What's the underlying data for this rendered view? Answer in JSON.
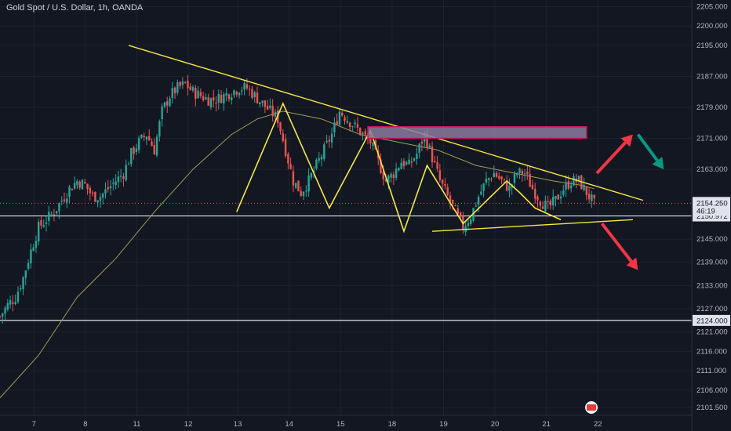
{
  "header": {
    "title": "Gold Spot / U.S. Dollar, 1h, OANDA"
  },
  "colors": {
    "background": "#131722",
    "up": "#26a69a",
    "down": "#ef5350",
    "trendline": "#f5e642",
    "ma": "#9e9d57",
    "zone_fill": "#8c7a9e",
    "zone_border": "#c2185b",
    "arrow_red": "#f23645",
    "arrow_green": "#089981"
  },
  "chart_data": {
    "type": "candlestick",
    "title": "Gold Spot / U.S. Dollar, 1h, OANDA",
    "x_ticks": [
      "7",
      "8",
      "11",
      "12",
      "13",
      "14",
      "15",
      "18",
      "19",
      "20",
      "21",
      "22"
    ],
    "y_ticks": [
      "2205.000",
      "2200.000",
      "2195.000",
      "2187.000",
      "2179.000",
      "2171.000",
      "2163.000",
      "2145.000",
      "2139.000",
      "2133.000",
      "2127.000",
      "2121.000",
      "2116.000",
      "2111.000",
      "2106.000",
      "2101.500"
    ],
    "ylim": [
      2099.5,
      2205.5
    ],
    "price_tag": {
      "price": "2154.250",
      "countdown": "46:19"
    },
    "horizontal_levels": [
      {
        "label": "2150.972",
        "value": 2150.972
      },
      {
        "label": "2124.000",
        "value": 2124.0
      }
    ],
    "close_path": [
      [
        0,
        2125
      ],
      [
        3,
        2128
      ],
      [
        6,
        2130
      ],
      [
        9,
        2135
      ],
      [
        12,
        2142
      ],
      [
        15,
        2148
      ],
      [
        18,
        2150
      ],
      [
        21,
        2152
      ],
      [
        24,
        2155
      ],
      [
        27,
        2158
      ],
      [
        30,
        2160
      ],
      [
        33,
        2159
      ],
      [
        36,
        2156
      ],
      [
        39,
        2156
      ],
      [
        42,
        2158
      ],
      [
        45,
        2160
      ],
      [
        48,
        2162
      ],
      [
        51,
        2167
      ],
      [
        54,
        2170
      ],
      [
        57,
        2172
      ],
      [
        60,
        2168
      ],
      [
        63,
        2178
      ],
      [
        66,
        2182
      ],
      [
        69,
        2184
      ],
      [
        72,
        2185
      ],
      [
        75,
        2183
      ],
      [
        78,
        2182
      ],
      [
        81,
        2181
      ],
      [
        84,
        2181
      ],
      [
        87,
        2182
      ],
      [
        90,
        2183
      ],
      [
        93,
        2184
      ],
      [
        96,
        2184
      ],
      [
        99,
        2182
      ],
      [
        102,
        2180
      ],
      [
        105,
        2178
      ],
      [
        108,
        2176
      ],
      [
        111,
        2168
      ],
      [
        114,
        2160
      ],
      [
        117,
        2157
      ],
      [
        120,
        2160
      ],
      [
        123,
        2164
      ],
      [
        126,
        2168
      ],
      [
        129,
        2172
      ],
      [
        132,
        2178
      ],
      [
        135,
        2176
      ],
      [
        138,
        2174
      ],
      [
        141,
        2172
      ],
      [
        144,
        2170
      ],
      [
        147,
        2165
      ],
      [
        150,
        2160
      ],
      [
        153,
        2162
      ],
      [
        156,
        2165
      ],
      [
        159,
        2164
      ],
      [
        162,
        2167
      ],
      [
        165,
        2172
      ],
      [
        168,
        2166
      ],
      [
        171,
        2160
      ],
      [
        174,
        2156
      ],
      [
        177,
        2152
      ],
      [
        180,
        2148
      ],
      [
        183,
        2151
      ],
      [
        186,
        2156
      ],
      [
        189,
        2160
      ],
      [
        192,
        2162
      ],
      [
        195,
        2160
      ],
      [
        198,
        2158
      ],
      [
        201,
        2162
      ],
      [
        204,
        2162
      ],
      [
        207,
        2158
      ],
      [
        210,
        2155
      ],
      [
        213,
        2153
      ],
      [
        216,
        2155
      ],
      [
        219,
        2158
      ],
      [
        222,
        2160
      ],
      [
        225,
        2160
      ],
      [
        228,
        2157
      ],
      [
        231,
        2154
      ]
    ],
    "moving_average": [
      [
        0,
        2104
      ],
      [
        15,
        2115
      ],
      [
        30,
        2130
      ],
      [
        45,
        2140
      ],
      [
        60,
        2152
      ],
      [
        75,
        2163
      ],
      [
        90,
        2172
      ],
      [
        100,
        2176
      ],
      [
        110,
        2178
      ],
      [
        125,
        2176
      ],
      [
        140,
        2172
      ],
      [
        155,
        2170
      ],
      [
        170,
        2168
      ],
      [
        185,
        2164
      ],
      [
        200,
        2162
      ],
      [
        215,
        2160
      ],
      [
        225,
        2159
      ],
      [
        231,
        2158
      ]
    ],
    "trendlines": [
      {
        "points": [
          [
            50,
            2195
          ],
          [
            250,
            2155
          ]
        ]
      },
      {
        "points": [
          [
            168,
            2147
          ],
          [
            246,
            2150
          ]
        ]
      }
    ],
    "zigzag": [
      [
        92,
        2152
      ],
      [
        110,
        2180
      ],
      [
        128,
        2153
      ],
      [
        144,
        2173
      ],
      [
        157,
        2147
      ],
      [
        166,
        2164
      ],
      [
        180,
        2149
      ],
      [
        197,
        2160
      ],
      [
        202,
        2157
      ],
      [
        208,
        2153
      ],
      [
        218,
        2150
      ]
    ],
    "zone": {
      "x_range": [
        143,
        228
      ],
      "price_range": [
        2171,
        2174
      ]
    },
    "arrows": [
      {
        "from": [
          232,
          2162
        ],
        "to": [
          246,
          2172
        ],
        "color": "red"
      },
      {
        "from": [
          248,
          2172
        ],
        "to": [
          258,
          2163
        ],
        "color": "green"
      },
      {
        "from": [
          234,
          2149
        ],
        "to": [
          248,
          2137
        ],
        "color": "red"
      }
    ]
  }
}
